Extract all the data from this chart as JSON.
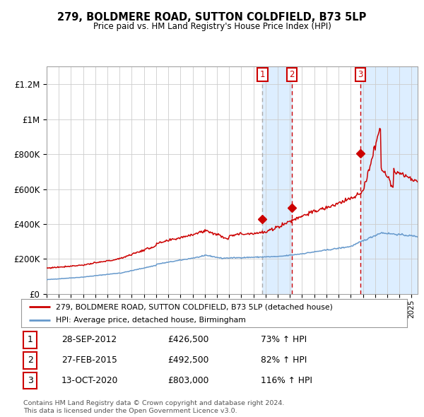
{
  "title": "279, BOLDMERE ROAD, SUTTON COLDFIELD, B73 5LP",
  "subtitle": "Price paid vs. HM Land Registry's House Price Index (HPI)",
  "legend_label_red": "279, BOLDMERE ROAD, SUTTON COLDFIELD, B73 5LP (detached house)",
  "legend_label_blue": "HPI: Average price, detached house, Birmingham",
  "footer1": "Contains HM Land Registry data © Crown copyright and database right 2024.",
  "footer2": "This data is licensed under the Open Government Licence v3.0.",
  "transactions": [
    {
      "num": 1,
      "date": "28-SEP-2012",
      "price": 426500,
      "pct": "73%",
      "dir": "↑"
    },
    {
      "num": 2,
      "date": "27-FEB-2015",
      "price": 492500,
      "pct": "82%",
      "dir": "↑"
    },
    {
      "num": 3,
      "date": "13-OCT-2020",
      "price": 803000,
      "pct": "116%",
      "dir": "↑"
    }
  ],
  "transaction_dates_decimal": [
    2012.747,
    2015.155,
    2020.784
  ],
  "ylim": [
    0,
    1300000
  ],
  "yticks": [
    0,
    200000,
    400000,
    600000,
    800000,
    1000000,
    1200000
  ],
  "ytick_labels": [
    "£0",
    "£200K",
    "£400K",
    "£600K",
    "£800K",
    "£1M",
    "£1.2M"
  ],
  "color_red": "#cc0000",
  "color_blue": "#6699cc",
  "color_shade": "#ddeeff",
  "bg_color": "#ffffff",
  "grid_color": "#cccccc",
  "xmin": 1995,
  "xmax": 2025.5
}
